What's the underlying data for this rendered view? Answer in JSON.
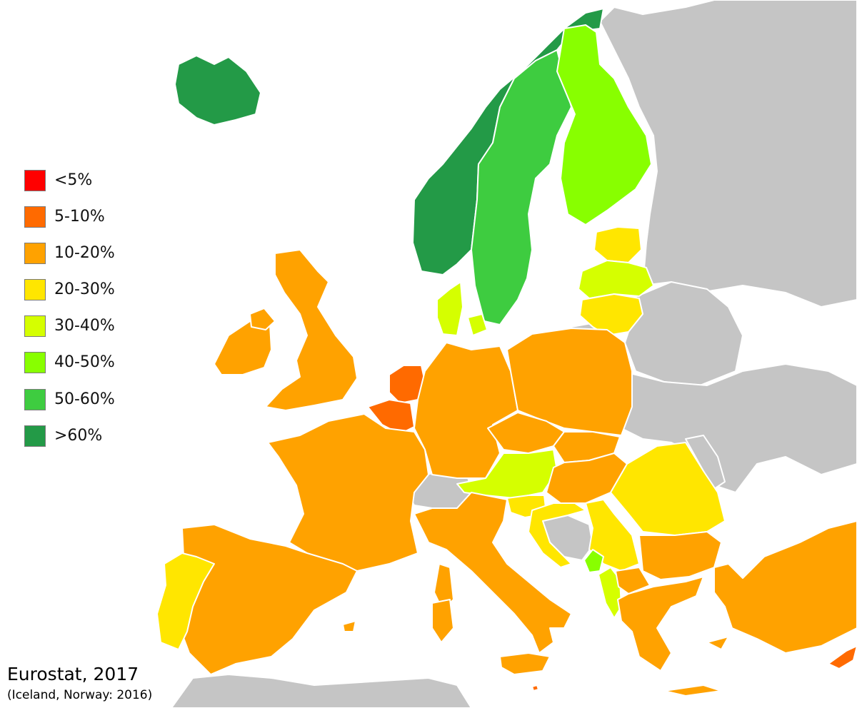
{
  "legend": [
    {
      "label": "<5%",
      "color": "#ff0000"
    },
    {
      "label": "5-10%",
      "color": "#ff6a00"
    },
    {
      "label": "10-20%",
      "color": "#ffa200"
    },
    {
      "label": "20-30%",
      "color": "#ffe600"
    },
    {
      "label": "30-40%",
      "color": "#d5ff00"
    },
    {
      "label": "40-50%",
      "color": "#88ff00"
    },
    {
      "label": "50-60%",
      "color": "#3ecc40"
    },
    {
      "label": ">60%",
      "color": "#239a47"
    }
  ],
  "colors": {
    "no_data": "#c5c5c5",
    "sea": "#ffffff",
    "border": "#ffffff"
  },
  "source": {
    "title": "Eurostat, 2017",
    "note": "(Iceland, Norway: 2016)"
  },
  "countries": [
    {
      "name": "Iceland",
      "category": ">60%"
    },
    {
      "name": "Norway",
      "category": ">60%"
    },
    {
      "name": "Sweden",
      "category": "50-60%"
    },
    {
      "name": "Finland",
      "category": "40-50%"
    },
    {
      "name": "Estonia",
      "category": "20-30%"
    },
    {
      "name": "Latvia",
      "category": "30-40%"
    },
    {
      "name": "Lithuania",
      "category": "20-30%"
    },
    {
      "name": "Denmark",
      "category": "30-40%"
    },
    {
      "name": "Ireland",
      "category": "10-20%"
    },
    {
      "name": "United Kingdom",
      "category": "10-20%"
    },
    {
      "name": "Netherlands",
      "category": "5-10%"
    },
    {
      "name": "Belgium",
      "category": "5-10%"
    },
    {
      "name": "Luxembourg",
      "category": "5-10%"
    },
    {
      "name": "Germany",
      "category": "10-20%"
    },
    {
      "name": "Poland",
      "category": "10-20%"
    },
    {
      "name": "France",
      "category": "10-20%"
    },
    {
      "name": "Czechia",
      "category": "10-20%"
    },
    {
      "name": "Slovakia",
      "category": "10-20%"
    },
    {
      "name": "Austria",
      "category": "30-40%"
    },
    {
      "name": "Hungary",
      "category": "10-20%"
    },
    {
      "name": "Slovenia",
      "category": "20-30%"
    },
    {
      "name": "Croatia",
      "category": "20-30%"
    },
    {
      "name": "Serbia",
      "category": "20-30%"
    },
    {
      "name": "Romania",
      "category": "20-30%"
    },
    {
      "name": "Bulgaria",
      "category": "10-20%"
    },
    {
      "name": "Montenegro",
      "category": "40-50%"
    },
    {
      "name": "Albania",
      "category": "30-40%"
    },
    {
      "name": "North Macedonia",
      "category": "10-20%"
    },
    {
      "name": "Greece",
      "category": "10-20%"
    },
    {
      "name": "Turkey",
      "category": "10-20%"
    },
    {
      "name": "Cyprus",
      "category": "5-10%"
    },
    {
      "name": "Italy",
      "category": "10-20%"
    },
    {
      "name": "Malta",
      "category": "5-10%"
    },
    {
      "name": "Spain",
      "category": "10-20%"
    },
    {
      "name": "Portugal",
      "category": "20-30%"
    },
    {
      "name": "Switzerland",
      "category": "no data"
    },
    {
      "name": "Bosnia and Herzegovina",
      "category": "no data"
    },
    {
      "name": "Russia",
      "category": "no data"
    },
    {
      "name": "Belarus",
      "category": "no data"
    },
    {
      "name": "Ukraine",
      "category": "no data"
    },
    {
      "name": "Moldova",
      "category": "no data"
    },
    {
      "name": "North Africa",
      "category": "no data"
    }
  ]
}
